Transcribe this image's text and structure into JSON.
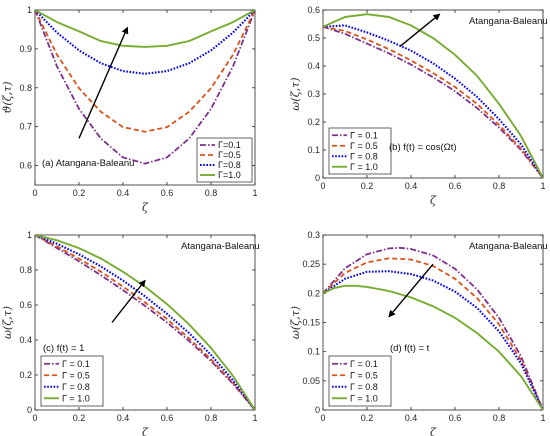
{
  "colors": {
    "Gamma=0.1": "#7e2f8e",
    "Gamma=0.5": "#d95319",
    "Gamma=0.8": "#0000ff",
    "Gamma=1.0": "#77ac30",
    "axis": "#262626",
    "arrow": "#000000"
  },
  "chart_data": [
    {
      "type": "line",
      "panel_label": "(a) Atangana-Baleanu",
      "ylabel": "ϑ(ζ,τ)",
      "xlabel": "ζ",
      "xlim": [
        0,
        1
      ],
      "ylim": [
        0.55,
        1.0
      ],
      "xticks": [
        "0",
        "0.2",
        "0.4",
        "0.6",
        "0.8",
        "1"
      ],
      "yticks": [
        "0.6",
        "0.7",
        "0.8",
        "0.9",
        "1"
      ],
      "legend_position": "bottom-right",
      "series": [
        {
          "name": "Γ=0.1",
          "style": "dashdot",
          "x": [
            0,
            0.1,
            0.2,
            0.3,
            0.4,
            0.5,
            0.6,
            0.7,
            0.8,
            0.9,
            1.0
          ],
          "y": [
            1.0,
            0.855,
            0.746,
            0.669,
            0.621,
            0.605,
            0.621,
            0.669,
            0.746,
            0.855,
            1.0
          ]
        },
        {
          "name": "Γ=0.5",
          "style": "dashed",
          "x": [
            0,
            0.1,
            0.2,
            0.3,
            0.4,
            0.5,
            0.6,
            0.7,
            0.8,
            0.9,
            1.0
          ],
          "y": [
            1.0,
            0.885,
            0.799,
            0.738,
            0.699,
            0.687,
            0.699,
            0.738,
            0.799,
            0.885,
            1.0
          ]
        },
        {
          "name": "Γ=0.8",
          "style": "dotted",
          "x": [
            0,
            0.1,
            0.2,
            0.3,
            0.4,
            0.5,
            0.6,
            0.7,
            0.8,
            0.9,
            1.0
          ],
          "y": [
            1.0,
            0.942,
            0.896,
            0.863,
            0.843,
            0.836,
            0.843,
            0.863,
            0.896,
            0.942,
            1.0
          ]
        },
        {
          "name": "Γ=1.0",
          "style": "solid",
          "x": [
            0,
            0.1,
            0.2,
            0.3,
            0.4,
            0.5,
            0.6,
            0.7,
            0.8,
            0.9,
            1.0
          ],
          "y": [
            1.0,
            0.969,
            0.945,
            0.92,
            0.908,
            0.905,
            0.908,
            0.92,
            0.945,
            0.969,
            1.0
          ]
        }
      ],
      "arrow": {
        "from": [
          0.2,
          0.67
        ],
        "to": [
          0.42,
          0.955
        ]
      }
    },
    {
      "type": "line",
      "panel_label": "(b) f(t) = cos(Ωt)",
      "title_text": "Atangana-Baleanu",
      "ylabel": "ω(ζ,τ)",
      "xlabel": "ζ",
      "xlim": [
        0,
        1
      ],
      "ylim": [
        0,
        0.6
      ],
      "xticks": [
        "0",
        "0.2",
        "0.4",
        "0.6",
        "0.8",
        "1"
      ],
      "yticks": [
        "0",
        "0.1",
        "0.2",
        "0.3",
        "0.4",
        "0.5",
        "0.6"
      ],
      "legend_position": "bottom-left",
      "series": [
        {
          "name": "Γ = 0.1",
          "style": "dashdot",
          "x": [
            0,
            0.1,
            0.2,
            0.3,
            0.4,
            0.5,
            0.6,
            0.7,
            0.8,
            0.9,
            1.0
          ],
          "y": [
            0.54,
            0.515,
            0.48,
            0.445,
            0.405,
            0.36,
            0.31,
            0.25,
            0.18,
            0.1,
            0.0
          ]
        },
        {
          "name": "Γ = 0.5",
          "style": "dashed",
          "x": [
            0,
            0.1,
            0.2,
            0.3,
            0.4,
            0.5,
            0.6,
            0.7,
            0.8,
            0.9,
            1.0
          ],
          "y": [
            0.54,
            0.525,
            0.495,
            0.46,
            0.42,
            0.375,
            0.325,
            0.265,
            0.19,
            0.105,
            0.0
          ]
        },
        {
          "name": "Γ = 0.8",
          "style": "dotted",
          "x": [
            0,
            0.1,
            0.2,
            0.3,
            0.4,
            0.5,
            0.6,
            0.7,
            0.8,
            0.9,
            1.0
          ],
          "y": [
            0.54,
            0.545,
            0.52,
            0.49,
            0.455,
            0.41,
            0.355,
            0.29,
            0.21,
            0.12,
            0.0
          ]
        },
        {
          "name": "Γ = 1.0",
          "style": "solid",
          "x": [
            0,
            0.1,
            0.2,
            0.3,
            0.4,
            0.5,
            0.6,
            0.7,
            0.8,
            0.9,
            1.0
          ],
          "y": [
            0.54,
            0.575,
            0.585,
            0.575,
            0.545,
            0.5,
            0.44,
            0.365,
            0.265,
            0.15,
            0.0
          ]
        }
      ],
      "arrow": {
        "from": [
          0.35,
          0.47
        ],
        "to": [
          0.53,
          0.585
        ]
      }
    },
    {
      "type": "line",
      "panel_label": "(c) f(t) = 1",
      "title_text": "Atangana-Baleanu",
      "ylabel": "ω(ζ,τ)",
      "xlabel": "ζ",
      "xlim": [
        0,
        1
      ],
      "ylim": [
        0,
        1
      ],
      "xticks": [
        "0",
        "0.2",
        "0.4",
        "0.6",
        "0.8",
        "1"
      ],
      "yticks": [
        "0",
        "0.2",
        "0.4",
        "0.6",
        "0.8",
        "1"
      ],
      "legend_position": "bottom-left",
      "series": [
        {
          "name": "Γ = 0.1",
          "style": "dashdot",
          "x": [
            0,
            0.1,
            0.2,
            0.3,
            0.4,
            0.5,
            0.6,
            0.7,
            0.8,
            0.9,
            1.0
          ],
          "y": [
            1.0,
            0.925,
            0.85,
            0.77,
            0.685,
            0.595,
            0.5,
            0.395,
            0.28,
            0.15,
            0.0
          ]
        },
        {
          "name": "Γ = 0.5",
          "style": "dashed",
          "x": [
            0,
            0.1,
            0.2,
            0.3,
            0.4,
            0.5,
            0.6,
            0.7,
            0.8,
            0.9,
            1.0
          ],
          "y": [
            1.0,
            0.935,
            0.865,
            0.79,
            0.705,
            0.615,
            0.52,
            0.41,
            0.29,
            0.155,
            0.0
          ]
        },
        {
          "name": "Γ = 0.8",
          "style": "dotted",
          "x": [
            0,
            0.1,
            0.2,
            0.3,
            0.4,
            0.5,
            0.6,
            0.7,
            0.8,
            0.9,
            1.0
          ],
          "y": [
            1.0,
            0.95,
            0.89,
            0.82,
            0.74,
            0.65,
            0.55,
            0.44,
            0.315,
            0.17,
            0.0
          ]
        },
        {
          "name": "Γ = 1.0",
          "style": "solid",
          "x": [
            0,
            0.1,
            0.2,
            0.3,
            0.4,
            0.5,
            0.6,
            0.7,
            0.8,
            0.9,
            1.0
          ],
          "y": [
            1.0,
            0.97,
            0.925,
            0.865,
            0.79,
            0.705,
            0.605,
            0.49,
            0.355,
            0.195,
            0.0
          ]
        }
      ],
      "arrow": {
        "from": [
          0.35,
          0.5
        ],
        "to": [
          0.5,
          0.74
        ]
      }
    },
    {
      "type": "line",
      "panel_label": "(d) f(t) = t",
      "title_text": "Atangana-Baleanu",
      "ylabel": "ω(ζ,τ)",
      "xlabel": "ζ",
      "xlim": [
        0,
        1
      ],
      "ylim": [
        0,
        0.3
      ],
      "xticks": [
        "0",
        "0.2",
        "0.4",
        "0.6",
        "0.8",
        "1"
      ],
      "yticks": [
        "0",
        "0.05",
        "0.1",
        "0.15",
        "0.2",
        "0.25",
        "0.3"
      ],
      "legend_position": "bottom-left",
      "series": [
        {
          "name": "Γ = 0.1",
          "style": "dashdot",
          "x": [
            0,
            0.1,
            0.2,
            0.3,
            0.35,
            0.4,
            0.5,
            0.6,
            0.7,
            0.8,
            0.9,
            1.0
          ],
          "y": [
            0.2,
            0.243,
            0.267,
            0.277,
            0.278,
            0.276,
            0.265,
            0.242,
            0.207,
            0.158,
            0.092,
            0.0
          ]
        },
        {
          "name": "Γ = 0.5",
          "style": "dashed",
          "x": [
            0,
            0.1,
            0.2,
            0.3,
            0.4,
            0.5,
            0.6,
            0.7,
            0.8,
            0.9,
            1.0
          ],
          "y": [
            0.2,
            0.235,
            0.253,
            0.26,
            0.258,
            0.247,
            0.225,
            0.192,
            0.147,
            0.085,
            0.0
          ]
        },
        {
          "name": "Γ = 0.8",
          "style": "dotted",
          "x": [
            0,
            0.1,
            0.2,
            0.3,
            0.4,
            0.5,
            0.6,
            0.7,
            0.8,
            0.9,
            1.0
          ],
          "y": [
            0.2,
            0.225,
            0.237,
            0.238,
            0.233,
            0.222,
            0.203,
            0.175,
            0.135,
            0.08,
            0.0
          ]
        },
        {
          "name": "Γ = 1.0",
          "style": "solid",
          "x": [
            0,
            0.05,
            0.1,
            0.15,
            0.2,
            0.3,
            0.4,
            0.5,
            0.6,
            0.7,
            0.8,
            0.9,
            1.0
          ],
          "y": [
            0.2,
            0.209,
            0.213,
            0.213,
            0.211,
            0.204,
            0.193,
            0.178,
            0.158,
            0.132,
            0.1,
            0.058,
            0.0
          ]
        }
      ],
      "arrow": {
        "from": [
          0.5,
          0.25
        ],
        "to": [
          0.3,
          0.16
        ]
      }
    }
  ]
}
